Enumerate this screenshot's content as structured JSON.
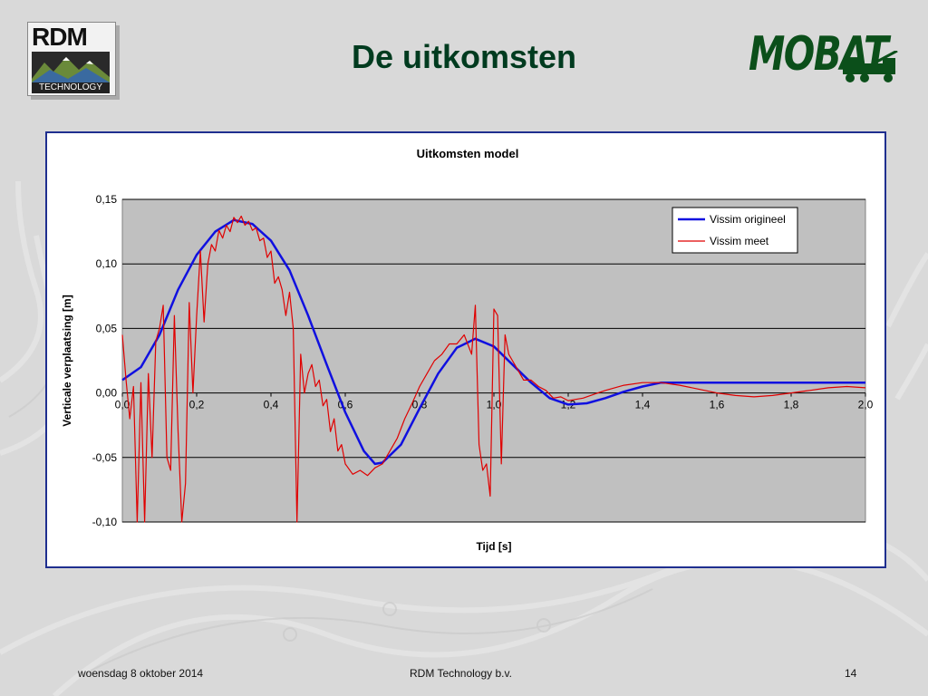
{
  "slide": {
    "title": "De uitkomsten",
    "footer_date": "woensdag 8 oktober 2014",
    "footer_company": "RDM Technology b.v.",
    "page_number": "14"
  },
  "logos": {
    "rdm_word": "RDM",
    "rdm_tagline": "TECHNOLOGY",
    "mobat_word": "MOBAT"
  },
  "colors": {
    "title": "#003b1f",
    "chart_border": "#1f2f8f",
    "plot_bg": "#c0c0c0",
    "series_original": "#1010e0",
    "series_measured": "#e00000"
  },
  "chart_data": {
    "type": "line",
    "title": "Uitkomsten model",
    "xlabel": "Tijd [s]",
    "ylabel": "Verticale verplaatsing [m]",
    "xlim": [
      0,
      2.0
    ],
    "ylim": [
      -0.1,
      0.15
    ],
    "x_ticks": [
      "0,0",
      "0,2",
      "0,4",
      "0,6",
      "0,8",
      "1,0",
      "1,2",
      "1,4",
      "1,6",
      "1,8",
      "2,0"
    ],
    "y_ticks": [
      "0,15",
      "0,10",
      "0,05",
      "0,00",
      "-0,05",
      "-0,10"
    ],
    "grid": true,
    "legend_position": "top-right",
    "series": [
      {
        "name": "Vissim origineel",
        "color": "#1010e0",
        "x": [
          0.0,
          0.05,
          0.1,
          0.15,
          0.2,
          0.25,
          0.3,
          0.35,
          0.4,
          0.45,
          0.5,
          0.55,
          0.6,
          0.65,
          0.68,
          0.7,
          0.75,
          0.8,
          0.85,
          0.9,
          0.95,
          1.0,
          1.05,
          1.1,
          1.15,
          1.2,
          1.25,
          1.3,
          1.35,
          1.4,
          1.45,
          1.5,
          1.6,
          1.7,
          1.8,
          1.9,
          2.0
        ],
        "y": [
          0.01,
          0.02,
          0.045,
          0.08,
          0.107,
          0.125,
          0.134,
          0.131,
          0.118,
          0.095,
          0.06,
          0.022,
          -0.015,
          -0.045,
          -0.055,
          -0.054,
          -0.04,
          -0.012,
          0.015,
          0.035,
          0.042,
          0.036,
          0.022,
          0.008,
          -0.004,
          -0.009,
          -0.008,
          -0.004,
          0.001,
          0.005,
          0.008,
          0.008,
          0.008,
          0.008,
          0.008,
          0.008,
          0.008
        ]
      },
      {
        "name": "Vissim meet",
        "color": "#e00000",
        "x": [
          0.0,
          0.01,
          0.02,
          0.03,
          0.04,
          0.05,
          0.06,
          0.07,
          0.08,
          0.09,
          0.1,
          0.11,
          0.12,
          0.13,
          0.14,
          0.15,
          0.16,
          0.17,
          0.18,
          0.19,
          0.2,
          0.21,
          0.22,
          0.23,
          0.24,
          0.25,
          0.26,
          0.27,
          0.28,
          0.29,
          0.3,
          0.31,
          0.32,
          0.33,
          0.34,
          0.35,
          0.36,
          0.37,
          0.38,
          0.39,
          0.4,
          0.41,
          0.42,
          0.43,
          0.44,
          0.45,
          0.46,
          0.47,
          0.48,
          0.49,
          0.5,
          0.51,
          0.52,
          0.53,
          0.54,
          0.55,
          0.56,
          0.57,
          0.58,
          0.59,
          0.6,
          0.62,
          0.64,
          0.66,
          0.68,
          0.7,
          0.72,
          0.74,
          0.76,
          0.78,
          0.8,
          0.82,
          0.84,
          0.86,
          0.88,
          0.9,
          0.92,
          0.94,
          0.95,
          0.96,
          0.97,
          0.98,
          0.99,
          1.0,
          1.01,
          1.02,
          1.03,
          1.04,
          1.05,
          1.06,
          1.07,
          1.08,
          1.1,
          1.12,
          1.14,
          1.16,
          1.18,
          1.2,
          1.22,
          1.24,
          1.26,
          1.28,
          1.3,
          1.35,
          1.4,
          1.45,
          1.5,
          1.55,
          1.6,
          1.65,
          1.7,
          1.75,
          1.8,
          1.85,
          1.9,
          1.95,
          2.0
        ],
        "y": [
          0.045,
          0.01,
          -0.02,
          0.005,
          -0.1,
          0.008,
          -0.1,
          0.015,
          -0.05,
          0.04,
          0.05,
          0.068,
          -0.05,
          -0.06,
          0.06,
          -0.03,
          -0.1,
          -0.07,
          0.07,
          0.0,
          0.06,
          0.11,
          0.055,
          0.1,
          0.115,
          0.11,
          0.126,
          0.12,
          0.13,
          0.125,
          0.136,
          0.132,
          0.137,
          0.13,
          0.133,
          0.126,
          0.128,
          0.118,
          0.12,
          0.105,
          0.11,
          0.085,
          0.09,
          0.08,
          0.06,
          0.078,
          0.05,
          -0.1,
          0.03,
          0.0,
          0.015,
          0.022,
          0.005,
          0.01,
          -0.01,
          -0.005,
          -0.03,
          -0.02,
          -0.045,
          -0.04,
          -0.055,
          -0.063,
          -0.06,
          -0.064,
          -0.058,
          -0.055,
          -0.045,
          -0.035,
          -0.02,
          -0.008,
          0.005,
          0.015,
          0.025,
          0.03,
          0.038,
          0.038,
          0.045,
          0.03,
          0.068,
          -0.04,
          -0.06,
          -0.055,
          -0.08,
          0.065,
          0.06,
          -0.055,
          0.045,
          0.03,
          0.025,
          0.02,
          0.015,
          0.01,
          0.01,
          0.005,
          0.002,
          -0.004,
          -0.003,
          -0.006,
          -0.005,
          -0.004,
          -0.002,
          0.0,
          0.002,
          0.006,
          0.008,
          0.008,
          0.006,
          0.003,
          0.0,
          -0.002,
          -0.003,
          -0.002,
          0.0,
          0.002,
          0.004,
          0.005,
          0.004
        ]
      }
    ]
  }
}
